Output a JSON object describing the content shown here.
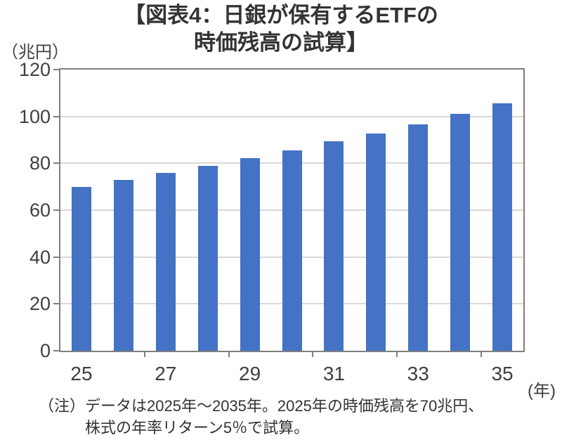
{
  "title": {
    "line1": "【図表4：日銀が保有するETFの",
    "line2": "時価残高の試算】"
  },
  "y_axis_unit": "（兆円）",
  "x_axis_unit": "(年)",
  "note": {
    "prefix": "（注）",
    "line1": "データは2025年～2035年。2025年の時価残高を70兆円、",
    "line2": "株式の年率リターン5％で試算。"
  },
  "colors": {
    "bar": "#4472C4",
    "axis": "#7F7F7F",
    "gridline": "#D9D9D9",
    "title_text": "#333333",
    "label_text": "#404040",
    "background": "#FFFFFF"
  },
  "chart_data": {
    "type": "bar",
    "title": "【図表4：日銀が保有するETFの時価残高の試算】",
    "ylabel": "（兆円）",
    "xlabel": "(年)",
    "categories": [
      "2025",
      "2026",
      "2027",
      "2028",
      "2029",
      "2030",
      "2031",
      "2032",
      "2033",
      "2034",
      "2035"
    ],
    "values": [
      70,
      73,
      76,
      79,
      82.3,
      85.6,
      89.3,
      92.7,
      96.5,
      101,
      105.5
    ],
    "ylim": [
      0,
      120
    ],
    "y_ticks": [
      0,
      20,
      40,
      60,
      80,
      100,
      120
    ],
    "x_tick_labels": [
      "25",
      "27",
      "29",
      "31",
      "33",
      "35"
    ],
    "x_tick_indices": [
      0,
      2,
      4,
      6,
      8,
      10
    ],
    "grid": true,
    "legend": "none",
    "note": "（注）データは2025年～2035年。2025年の時価残高を70兆円、株式の年率リターン5％で試算。"
  }
}
